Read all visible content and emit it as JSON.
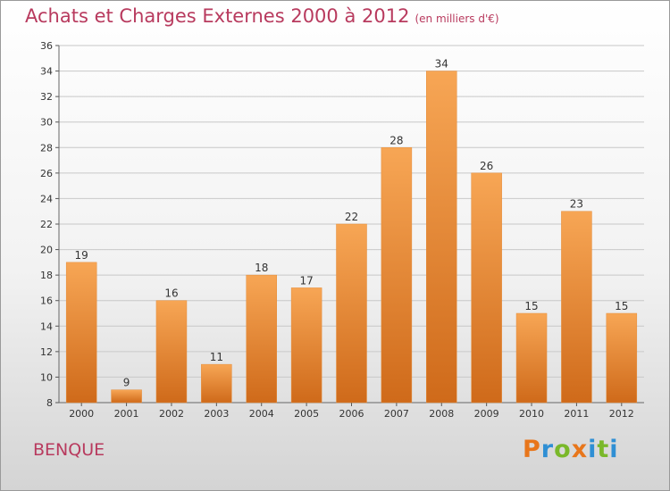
{
  "title": "Achats et Charges Externes 2000 à 2012",
  "unit": "(en milliers d'€)",
  "commune": "BENQUE",
  "brand": "Proxiti",
  "colors": {
    "title": "#b83a5e",
    "bar_top": "#f7a655",
    "bar_bottom": "#cf6a1a",
    "grid": "#c8c8c8",
    "brand_letters": [
      "#e8761b",
      "#2f8fd4",
      "#7ab82a",
      "#e8761b",
      "#2f8fd4",
      "#7ab82a",
      "#2f8fd4"
    ]
  },
  "chart_data": {
    "type": "bar",
    "title": "Achats et Charges Externes 2000 à 2012",
    "subtitle": "(en milliers d'€)",
    "xlabel": "",
    "ylabel": "",
    "categories": [
      "2000",
      "2001",
      "2002",
      "2003",
      "2004",
      "2005",
      "2006",
      "2007",
      "2008",
      "2009",
      "2010",
      "2011",
      "2012"
    ],
    "values": [
      19,
      9,
      16,
      11,
      18,
      17,
      22,
      28,
      34,
      26,
      15,
      23,
      15
    ],
    "ylim": [
      8,
      36
    ],
    "yticks": [
      8,
      10,
      12,
      14,
      16,
      18,
      20,
      22,
      24,
      26,
      28,
      30,
      32,
      34,
      36
    ],
    "grid": true,
    "data_labels": true
  }
}
